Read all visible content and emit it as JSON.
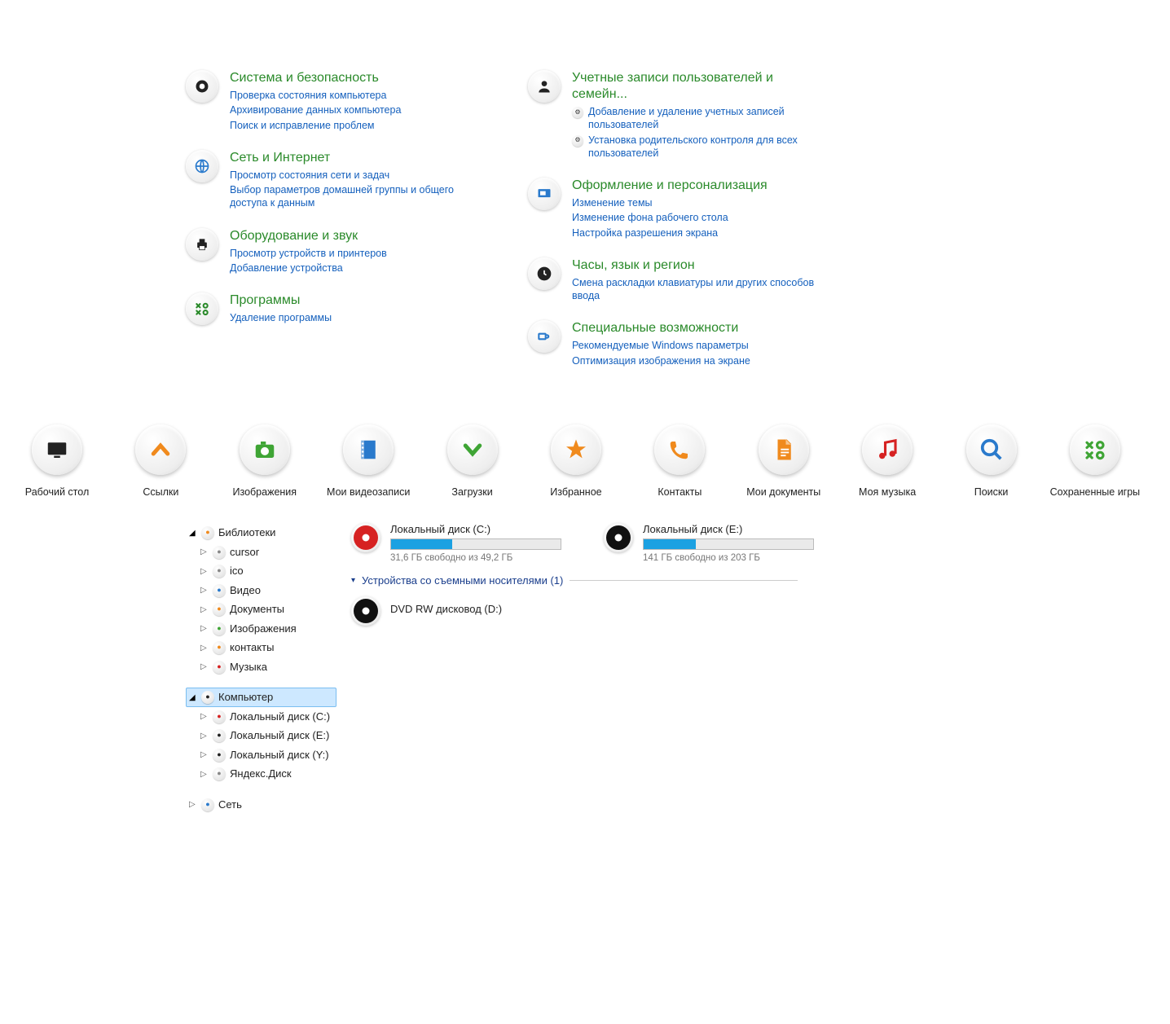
{
  "control_panel": {
    "left": [
      {
        "icon": "shield",
        "icon_color": "#222",
        "title": "Система и безопасность",
        "links": [
          {
            "text": "Проверка состояния компьютера"
          },
          {
            "text": "Архивирование данных компьютера"
          },
          {
            "text": "Поиск и исправление проблем"
          }
        ]
      },
      {
        "icon": "globe",
        "icon_color": "#2a7acc",
        "title": "Сеть и Интернет",
        "links": [
          {
            "text": "Просмотр состояния сети и задач"
          },
          {
            "text": "Выбор параметров домашней группы и общего доступа к данным"
          }
        ]
      },
      {
        "icon": "printer",
        "icon_color": "#222",
        "title": "Оборудование и звук",
        "links": [
          {
            "text": "Просмотр устройств и принтеров"
          },
          {
            "text": "Добавление устройства"
          }
        ]
      },
      {
        "icon": "xox",
        "icon_color": "#2a8a2a",
        "title": "Программы",
        "links": [
          {
            "text": "Удаление программы"
          }
        ]
      }
    ],
    "right": [
      {
        "icon": "user",
        "icon_color": "#222",
        "title": "Учетные записи пользователей и семейн...",
        "links": [
          {
            "text": "Добавление и удаление учетных записей пользователей",
            "bullet": true
          },
          {
            "text": "Установка родительского контроля для всех пользователей",
            "bullet": true
          }
        ]
      },
      {
        "icon": "monitor",
        "icon_color": "#2a7acc",
        "title": "Оформление и персонализация",
        "links": [
          {
            "text": "Изменение темы"
          },
          {
            "text": "Изменение фона рабочего стола"
          },
          {
            "text": "Настройка разрешения экрана"
          }
        ]
      },
      {
        "icon": "clock",
        "icon_color": "#222",
        "title": "Часы, язык и регион",
        "links": [
          {
            "text": "Смена раскладки клавиатуры или других способов ввода"
          }
        ]
      },
      {
        "icon": "access",
        "icon_color": "#2a7acc",
        "title": "Специальные возможности",
        "links": [
          {
            "text": "Рекомендуемые Windows параметры"
          },
          {
            "text": "Оптимизация изображения на экране"
          }
        ]
      }
    ]
  },
  "big_icons": [
    {
      "label": "Рабочий стол",
      "icon": "desktop",
      "color": "#222"
    },
    {
      "label": "Ссылки",
      "icon": "chev-up",
      "color": "#f08a1d"
    },
    {
      "label": "Изображения",
      "icon": "camera",
      "color": "#3fa535"
    },
    {
      "label": "Мои видеозаписи",
      "icon": "film",
      "color": "#2a7acc"
    },
    {
      "label": "Загрузки",
      "icon": "chev-down",
      "color": "#3fa535"
    },
    {
      "label": "Избранное",
      "icon": "star",
      "color": "#f08a1d"
    },
    {
      "label": "Контакты",
      "icon": "phone",
      "color": "#f08a1d"
    },
    {
      "label": "Мои документы",
      "icon": "doc",
      "color": "#f08a1d"
    },
    {
      "label": "Моя музыка",
      "icon": "music",
      "color": "#d62222"
    },
    {
      "label": "Поиски",
      "icon": "search",
      "color": "#2a7acc"
    },
    {
      "label": "Сохраненные игры",
      "icon": "xox",
      "color": "#3fa535"
    }
  ],
  "tree": {
    "libraries": {
      "label": "Библиотеки",
      "expanded": true,
      "icon_color": "#f08a1d",
      "children": [
        {
          "label": "cursor",
          "icon_color": "#888"
        },
        {
          "label": "ico",
          "icon_color": "#888"
        },
        {
          "label": "Видео",
          "icon_color": "#2a7acc"
        },
        {
          "label": "Документы",
          "icon_color": "#f08a1d"
        },
        {
          "label": "Изображения",
          "icon_color": "#3fa535"
        },
        {
          "label": "контакты",
          "icon_color": "#f08a1d"
        },
        {
          "label": "Музыка",
          "icon_color": "#d62222"
        }
      ]
    },
    "computer": {
      "label": "Компьютер",
      "expanded": true,
      "selected": true,
      "icon_color": "#222",
      "children": [
        {
          "label": "Локальный диск (C:)",
          "icon_color": "#d62222"
        },
        {
          "label": "Локальный диск (E:)",
          "icon_color": "#222"
        },
        {
          "label": "Локальный диск (Y:)",
          "icon_color": "#222"
        },
        {
          "label": "Яндекс.Диск",
          "icon_color": "#888"
        }
      ]
    },
    "network": {
      "label": "Сеть",
      "expanded": false,
      "icon_color": "#2a7acc"
    }
  },
  "drives": {
    "fixed": [
      {
        "title": "Локальный диск (C:)",
        "status": "31,6 ГБ свободно из 49,2 ГБ",
        "pct": 36,
        "icon_color": "#d62222"
      },
      {
        "title": "Локальный диск (E:)",
        "status": "141 ГБ свободно из 203 ГБ",
        "pct": 31,
        "icon_color": "#111"
      }
    ],
    "removable_header": "Устройства со съемными носителями (1)",
    "removable": [
      {
        "title": "DVD RW дисковод (D:)",
        "icon_color": "#111"
      }
    ]
  },
  "colors": {
    "title_green": "#2a8a2a",
    "link_blue": "#1560bd",
    "bar_fill": "#1ba1e2"
  }
}
